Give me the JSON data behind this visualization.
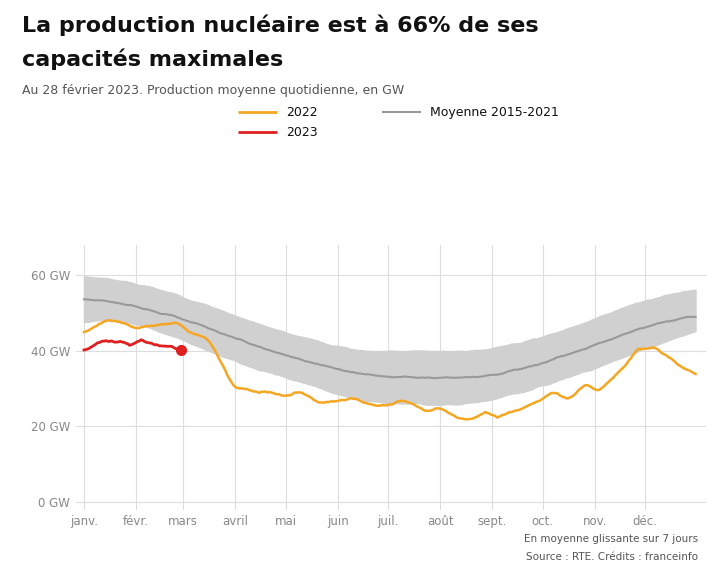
{
  "title_line1": "La production nucléaire est à 66% de ses",
  "title_line2": "capacités maximales",
  "subtitle": "Au 28 février 2023. Production moyenne quotidienne, en GW",
  "footnote_line1": "En moyenne glissante sur 7 jours",
  "footnote_line2": "Source : RTE. Crédits : franceinfo",
  "background_color": "#ffffff",
  "title_color": "#111111",
  "subtitle_color": "#555555",
  "tick_color": "#888888",
  "grid_color": "#dddddd",
  "orange_color": "#f5a623",
  "red_color": "#e02020",
  "gray_mean_color": "#999999",
  "gray_band_color": "#d0d0d0",
  "months": [
    "janv.",
    "févr.",
    "mars",
    "avril",
    "mai",
    "juin",
    "juil.",
    "août",
    "sept.",
    "oct.",
    "nov.",
    "déc."
  ],
  "yticks": [
    0,
    20,
    40,
    60
  ],
  "ylim": [
    -2,
    68
  ],
  "legend_2022": "2022",
  "legend_2023": "2023",
  "legend_mean": "Moyenne 2015-2021"
}
